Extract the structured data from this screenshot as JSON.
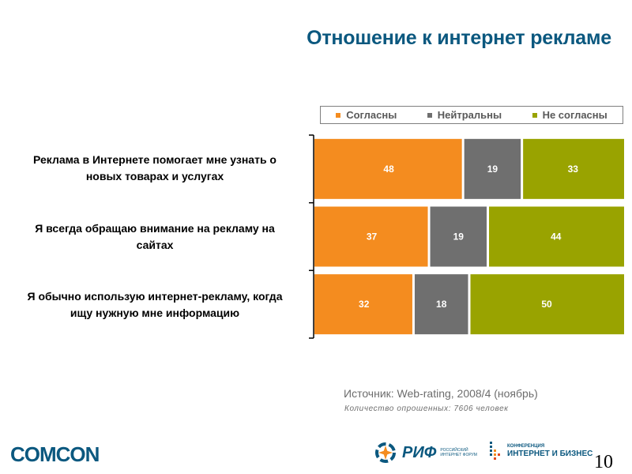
{
  "title": "Отношение к интернет рекламе",
  "legend": [
    {
      "label": "Согласны",
      "color": "#f48c1f"
    },
    {
      "label": "Нейтральны",
      "color": "#6f6f6f"
    },
    {
      "label": "Не согласны",
      "color": "#99a300"
    }
  ],
  "chart_data": {
    "type": "bar",
    "orientation": "horizontal",
    "stacked": true,
    "title": "Отношение к интернет рекламе",
    "xlabel": "",
    "ylabel": "",
    "xlim": [
      0,
      100
    ],
    "legend_position": "top",
    "grid": false,
    "categories": [
      "Реклама в Интернете помогает мне узнать о новых товарах и услугах",
      "Я всегда обращаю внимание на рекламу на сайтах",
      "Я обычно использую интернет-рекламу, когда ищу нужную мне информацию"
    ],
    "series": [
      {
        "name": "Согласны",
        "color": "#f48c1f",
        "values": [
          48,
          37,
          32
        ]
      },
      {
        "name": "Нейтральны",
        "color": "#6f6f6f",
        "values": [
          19,
          19,
          18
        ]
      },
      {
        "name": "Не согласны",
        "color": "#99a300",
        "values": [
          33,
          44,
          50
        ]
      }
    ]
  },
  "category_lines": [
    [
      "Реклама в Интернете помогает мне узнать о",
      "новых товарах и услугах"
    ],
    [
      "Я всегда обращаю внимание на рекламу на",
      "сайтах"
    ],
    [
      "Я обычно использую интернет-рекламу, когда",
      "ищу нужную мне информацию"
    ]
  ],
  "footer": {
    "source": "Источник: Web-rating, 2008/4 (ноябрь)",
    "note": "Количество опрошенных: 7606 человек",
    "comcon_logo": "COMCON",
    "rif_logo": "РИФ",
    "rif_sub_1": "РОССИЙСКИЙ",
    "rif_sub_2": "ИНТЕРНЕТ ФОРУМ",
    "ib_small": "КОНФЕРЕНЦИЯ",
    "ib_big": "ИНТЕРНЕТ И БИЗНЕС",
    "page_number": "10"
  }
}
